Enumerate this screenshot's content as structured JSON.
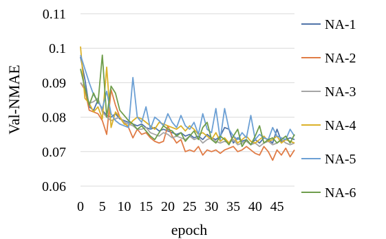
{
  "chart_data": {
    "type": "line",
    "title": "",
    "xlabel": "epoch",
    "ylabel": "Val-NMAE",
    "xlim": [
      0,
      49
    ],
    "ylim": [
      0.06,
      0.11
    ],
    "x_ticks": [
      0,
      5,
      10,
      15,
      20,
      25,
      30,
      35,
      40,
      45
    ],
    "y_ticks": [
      0.06,
      0.07,
      0.08,
      0.09,
      0.1,
      0.11
    ],
    "y_tick_labels": [
      "0.06",
      "0.07",
      "0.08",
      "0.09",
      "0.1",
      "0.11"
    ],
    "grid": "horizontal",
    "legend_position": "right",
    "x": [
      0,
      1,
      2,
      3,
      4,
      5,
      6,
      7,
      8,
      9,
      10,
      11,
      12,
      13,
      14,
      15,
      16,
      17,
      18,
      19,
      20,
      21,
      22,
      23,
      24,
      25,
      26,
      27,
      28,
      29,
      30,
      31,
      32,
      33,
      34,
      35,
      36,
      37,
      38,
      39,
      40,
      41,
      42,
      43,
      44,
      45,
      46,
      47,
      48,
      49
    ],
    "series": [
      {
        "name": "NA-1",
        "color": "#4f73a8",
        "values": [
          0.0975,
          0.091,
          0.083,
          0.082,
          0.085,
          0.082,
          0.0805,
          0.08,
          0.081,
          0.0795,
          0.079,
          0.0785,
          0.078,
          0.0775,
          0.078,
          0.077,
          0.0765,
          0.077,
          0.076,
          0.0765,
          0.076,
          0.0755,
          0.075,
          0.0755,
          0.0745,
          0.075,
          0.074,
          0.0745,
          0.0735,
          0.075,
          0.074,
          0.0735,
          0.0745,
          0.077,
          0.0765,
          0.0725,
          0.074,
          0.073,
          0.0735,
          0.072,
          0.0735,
          0.0725,
          0.074,
          0.0735,
          0.0725,
          0.0765,
          0.073,
          0.0735,
          0.074,
          0.0735
        ]
      },
      {
        "name": "NA-2",
        "color": "#e07b45",
        "values": [
          0.09,
          0.088,
          0.082,
          0.0815,
          0.081,
          0.079,
          0.075,
          0.088,
          0.0835,
          0.08,
          0.0785,
          0.077,
          0.074,
          0.0765,
          0.075,
          0.0755,
          0.074,
          0.073,
          0.0725,
          0.073,
          0.0775,
          0.0745,
          0.0725,
          0.0735,
          0.07,
          0.0705,
          0.07,
          0.0715,
          0.069,
          0.0705,
          0.07,
          0.0705,
          0.0695,
          0.0705,
          0.071,
          0.0715,
          0.07,
          0.0705,
          0.0715,
          0.0705,
          0.0695,
          0.069,
          0.0715,
          0.07,
          0.0675,
          0.0705,
          0.069,
          0.071,
          0.0685,
          0.0705
        ]
      },
      {
        "name": "NA-3",
        "color": "#a5a5a5",
        "values": [
          0.09,
          0.0885,
          0.084,
          0.0845,
          0.0855,
          0.0815,
          0.08,
          0.079,
          0.0795,
          0.08,
          0.0785,
          0.078,
          0.0775,
          0.0765,
          0.0765,
          0.077,
          0.0755,
          0.075,
          0.0745,
          0.0755,
          0.075,
          0.074,
          0.0745,
          0.074,
          0.0735,
          0.0745,
          0.0735,
          0.074,
          0.0725,
          0.0735,
          0.074,
          0.073,
          0.0725,
          0.073,
          0.0725,
          0.0735,
          0.072,
          0.0725,
          0.073,
          0.072,
          0.0725,
          0.0715,
          0.0725,
          0.073,
          0.072,
          0.0725,
          0.0735,
          0.0725,
          0.072,
          0.0725
        ]
      },
      {
        "name": "NA-4",
        "color": "#dbb128",
        "values": [
          0.1005,
          0.0855,
          0.084,
          0.0815,
          0.083,
          0.0795,
          0.0945,
          0.077,
          0.0815,
          0.08,
          0.078,
          0.0775,
          0.079,
          0.08,
          0.0795,
          0.0785,
          0.0775,
          0.0765,
          0.0785,
          0.078,
          0.0775,
          0.077,
          0.0765,
          0.0775,
          0.076,
          0.0775,
          0.0765,
          0.075,
          0.0755,
          0.0745,
          0.0735,
          0.0755,
          0.073,
          0.074,
          0.0725,
          0.0745,
          0.0725,
          0.0735,
          0.0745,
          0.073,
          0.0725,
          0.0735,
          0.0745,
          0.073,
          0.0735,
          0.0745,
          0.0725,
          0.0735,
          0.073,
          0.0725
        ]
      },
      {
        "name": "NA-5",
        "color": "#6b9fd4",
        "values": [
          0.098,
          0.094,
          0.09,
          0.0865,
          0.0845,
          0.0825,
          0.0875,
          0.081,
          0.079,
          0.078,
          0.0775,
          0.077,
          0.0915,
          0.08,
          0.0785,
          0.083,
          0.0765,
          0.08,
          0.079,
          0.0775,
          0.081,
          0.0785,
          0.077,
          0.0805,
          0.0775,
          0.0765,
          0.0785,
          0.075,
          0.081,
          0.0765,
          0.0755,
          0.0825,
          0.0735,
          0.0825,
          0.0765,
          0.0745,
          0.0735,
          0.0755,
          0.074,
          0.0805,
          0.0735,
          0.075,
          0.074,
          0.0735,
          0.077,
          0.0745,
          0.074,
          0.0735,
          0.0765,
          0.0745
        ]
      },
      {
        "name": "NA-6",
        "color": "#6e9d4b",
        "values": [
          0.094,
          0.0885,
          0.0835,
          0.087,
          0.084,
          0.098,
          0.08,
          0.089,
          0.087,
          0.082,
          0.0805,
          0.079,
          0.078,
          0.0765,
          0.0775,
          0.076,
          0.0745,
          0.0735,
          0.0755,
          0.0775,
          0.0765,
          0.076,
          0.0745,
          0.0755,
          0.073,
          0.0745,
          0.076,
          0.0735,
          0.077,
          0.0785,
          0.0735,
          0.0725,
          0.0745,
          0.0735,
          0.072,
          0.0745,
          0.0765,
          0.0715,
          0.0735,
          0.072,
          0.0745,
          0.0775,
          0.0725,
          0.0735,
          0.074,
          0.0725,
          0.0735,
          0.0745,
          0.0725,
          0.075
        ]
      }
    ]
  }
}
